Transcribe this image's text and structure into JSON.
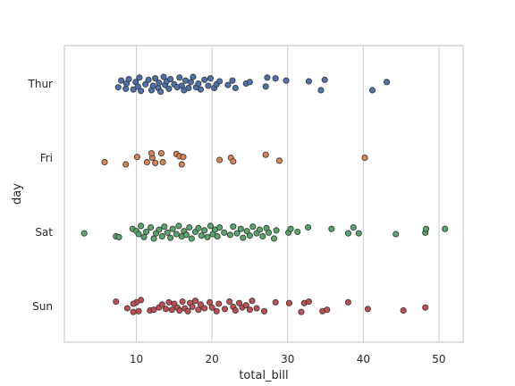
{
  "chart_data": {
    "type": "scatter",
    "style": "strip",
    "xlabel": "total_bill",
    "ylabel": "day",
    "xlim": [
      0.48,
      53.2
    ],
    "x_ticks": [
      10,
      20,
      30,
      40,
      50
    ],
    "x_tick_labels": [
      "10",
      "20",
      "30",
      "40",
      "50"
    ],
    "categories": [
      "Thur",
      "Fri",
      "Sat",
      "Sun"
    ],
    "grid": "vertical",
    "series": [
      {
        "name": "Thur",
        "color": "#4c72b0",
        "points": [
          [
            7.6,
            0.05
          ],
          [
            8.0,
            -0.04
          ],
          [
            8.6,
            0.07
          ],
          [
            8.7,
            0.0
          ],
          [
            9.0,
            -0.06
          ],
          [
            9.6,
            0.08
          ],
          [
            9.9,
            -0.02
          ],
          [
            10.2,
            0.04
          ],
          [
            10.4,
            -0.08
          ],
          [
            10.6,
            0.1
          ],
          [
            11.2,
            0.01
          ],
          [
            11.6,
            -0.05
          ],
          [
            12.0,
            0.09
          ],
          [
            12.2,
            0.03
          ],
          [
            12.5,
            -0.07
          ],
          [
            12.9,
            0.06
          ],
          [
            13.0,
            -0.01
          ],
          [
            13.2,
            0.11
          ],
          [
            13.6,
            -0.09
          ],
          [
            13.8,
            0.02
          ],
          [
            14.0,
            -0.03
          ],
          [
            14.3,
            0.07
          ],
          [
            14.5,
            -0.06
          ],
          [
            15.0,
            0.01
          ],
          [
            15.4,
            0.05
          ],
          [
            15.7,
            -0.08
          ],
          [
            16.0,
            0.03
          ],
          [
            16.3,
            0.09
          ],
          [
            16.5,
            -0.04
          ],
          [
            16.9,
            0.06
          ],
          [
            17.2,
            -0.02
          ],
          [
            17.5,
            -0.09
          ],
          [
            17.9,
            0.05
          ],
          [
            18.2,
            0.0
          ],
          [
            18.5,
            0.08
          ],
          [
            19.0,
            -0.05
          ],
          [
            19.5,
            0.03
          ],
          [
            19.8,
            -0.07
          ],
          [
            20.3,
            0.06
          ],
          [
            20.6,
            0.01
          ],
          [
            21.0,
            -0.03
          ],
          [
            22.1,
            0.02
          ],
          [
            22.7,
            -0.04
          ],
          [
            23.1,
            0.06
          ],
          [
            24.5,
            0.0
          ],
          [
            25.0,
            -0.02
          ],
          [
            27.1,
            0.04
          ],
          [
            27.3,
            -0.08
          ],
          [
            28.4,
            -0.07
          ],
          [
            29.8,
            -0.04
          ],
          [
            32.8,
            -0.03
          ],
          [
            34.4,
            0.09
          ],
          [
            34.9,
            -0.05
          ],
          [
            41.2,
            0.09
          ],
          [
            43.1,
            -0.02
          ]
        ]
      },
      {
        "name": "Fri",
        "color": "#dd8452",
        "points": [
          [
            5.8,
            0.06
          ],
          [
            8.6,
            0.09
          ],
          [
            10.1,
            -0.01
          ],
          [
            11.4,
            0.06
          ],
          [
            12.1,
            0.0
          ],
          [
            12.5,
            0.07
          ],
          [
            12.0,
            -0.06
          ],
          [
            13.3,
            -0.06
          ],
          [
            13.5,
            0.06
          ],
          [
            15.3,
            -0.05
          ],
          [
            15.7,
            -0.02
          ],
          [
            16.0,
            0.09
          ],
          [
            16.2,
            -0.01
          ],
          [
            21.0,
            0.03
          ],
          [
            22.5,
            0.0
          ],
          [
            22.8,
            0.05
          ],
          [
            27.1,
            -0.04
          ],
          [
            28.9,
            0.04
          ],
          [
            40.2,
            0.0
          ]
        ]
      },
      {
        "name": "Sat",
        "color": "#55a868",
        "points": [
          [
            3.1,
            0.02
          ],
          [
            7.3,
            0.06
          ],
          [
            7.7,
            0.07
          ],
          [
            9.5,
            -0.04
          ],
          [
            10.0,
            -0.01
          ],
          [
            10.3,
            0.03
          ],
          [
            10.6,
            -0.08
          ],
          [
            11.0,
            0.07
          ],
          [
            11.3,
            0.0
          ],
          [
            11.9,
            -0.06
          ],
          [
            12.3,
            0.09
          ],
          [
            12.6,
            0.02
          ],
          [
            13.0,
            -0.03
          ],
          [
            13.4,
            0.06
          ],
          [
            13.7,
            -0.07
          ],
          [
            14.1,
            0.01
          ],
          [
            14.5,
            0.08
          ],
          [
            14.8,
            -0.04
          ],
          [
            15.3,
            0.03
          ],
          [
            15.6,
            -0.08
          ],
          [
            16.0,
            0.06
          ],
          [
            16.3,
            -0.01
          ],
          [
            16.6,
            0.04
          ],
          [
            17.0,
            -0.06
          ],
          [
            17.3,
            0.09
          ],
          [
            17.8,
            0.0
          ],
          [
            18.2,
            -0.05
          ],
          [
            18.6,
            0.05
          ],
          [
            19.0,
            -0.02
          ],
          [
            19.4,
            0.07
          ],
          [
            19.8,
            -0.08
          ],
          [
            20.1,
            0.03
          ],
          [
            20.4,
            -0.03
          ],
          [
            20.7,
            0.06
          ],
          [
            21.0,
            -0.06
          ],
          [
            21.6,
            0.01
          ],
          [
            22.4,
            0.04
          ],
          [
            22.8,
            -0.07
          ],
          [
            23.3,
            0.02
          ],
          [
            23.8,
            -0.04
          ],
          [
            24.1,
            0.08
          ],
          [
            24.6,
            -0.01
          ],
          [
            25.0,
            0.05
          ],
          [
            25.4,
            -0.07
          ],
          [
            25.9,
            0.02
          ],
          [
            26.3,
            -0.03
          ],
          [
            26.7,
            0.06
          ],
          [
            27.2,
            -0.05
          ],
          [
            27.5,
            0.01
          ],
          [
            28.2,
            0.09
          ],
          [
            28.5,
            -0.02
          ],
          [
            30.1,
            0.01
          ],
          [
            30.4,
            -0.04
          ],
          [
            31.3,
            0.0
          ],
          [
            32.7,
            -0.06
          ],
          [
            35.8,
            -0.04
          ],
          [
            38.0,
            0.02
          ],
          [
            38.7,
            -0.06
          ],
          [
            39.4,
            0.02
          ],
          [
            44.3,
            0.03
          ],
          [
            48.2,
            0.01
          ],
          [
            48.3,
            -0.04
          ],
          [
            50.8,
            -0.04
          ]
        ]
      },
      {
        "name": "Sun",
        "color": "#c44e52",
        "points": [
          [
            7.3,
            -0.06
          ],
          [
            8.8,
            0.03
          ],
          [
            9.6,
            0.08
          ],
          [
            10.3,
            0.07
          ],
          [
            10.0,
            -0.05
          ],
          [
            9.6,
            -0.03
          ],
          [
            10.6,
            -0.08
          ],
          [
            11.8,
            0.06
          ],
          [
            12.3,
            0.05
          ],
          [
            13.0,
            0.02
          ],
          [
            13.4,
            -0.02
          ],
          [
            13.9,
            0.04
          ],
          [
            14.3,
            -0.05
          ],
          [
            14.7,
            0.05
          ],
          [
            15.0,
            -0.03
          ],
          [
            15.4,
            0.02
          ],
          [
            15.7,
            0.06
          ],
          [
            16.1,
            -0.06
          ],
          [
            16.4,
            0.03
          ],
          [
            16.8,
            0.07
          ],
          [
            17.1,
            -0.04
          ],
          [
            17.4,
            0.01
          ],
          [
            17.8,
            -0.07
          ],
          [
            18.2,
            0.05
          ],
          [
            18.5,
            -0.02
          ],
          [
            19.0,
            0.03
          ],
          [
            19.7,
            -0.05
          ],
          [
            20.0,
            0.02
          ],
          [
            20.6,
            0.07
          ],
          [
            20.9,
            -0.03
          ],
          [
            21.7,
            0.04
          ],
          [
            22.3,
            -0.06
          ],
          [
            22.8,
            0.01
          ],
          [
            23.1,
            0.06
          ],
          [
            23.6,
            -0.04
          ],
          [
            24.0,
            0.02
          ],
          [
            24.5,
            -0.01
          ],
          [
            25.0,
            0.05
          ],
          [
            25.3,
            -0.07
          ],
          [
            25.9,
            0.03
          ],
          [
            26.9,
            0.07
          ],
          [
            28.4,
            -0.05
          ],
          [
            30.2,
            -0.04
          ],
          [
            31.8,
            0.08
          ],
          [
            32.2,
            -0.04
          ],
          [
            32.8,
            -0.06
          ],
          [
            34.6,
            0.07
          ],
          [
            35.2,
            0.05
          ],
          [
            38.0,
            -0.05
          ],
          [
            40.6,
            0.04
          ],
          [
            45.3,
            0.06
          ],
          [
            48.2,
            0.02
          ]
        ]
      }
    ]
  }
}
